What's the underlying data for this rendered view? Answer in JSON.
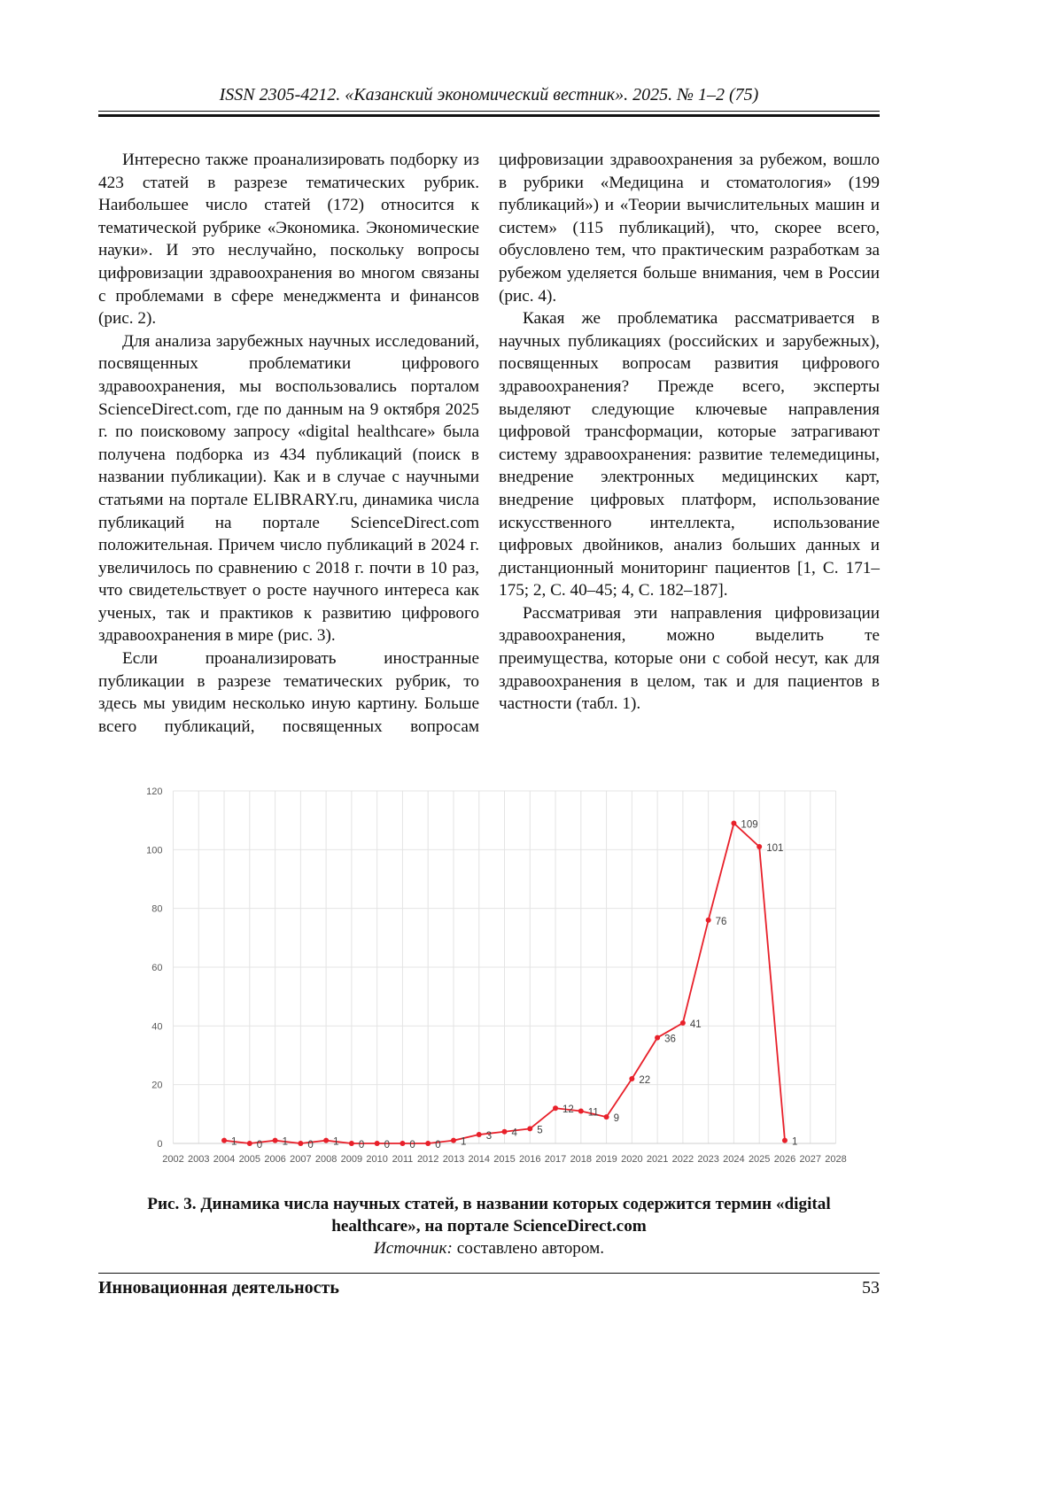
{
  "header": "ISSN 2305-4212. «Казанский экономический вестник». 2025. № 1–2 (75)",
  "left_column": [
    "Интересно также проанализировать подборку из 423 статей в разрезе тематических рубрик. Наибольшее число статей (172) относится к тематической рубрике «Экономика. Экономические науки». И это неслучайно, поскольку вопросы цифровизации здравоохранения во многом связаны с проблемами в сфере менеджмента и финансов (рис. 2).",
    "Для анализа зарубежных научных исследований, посвященных проблематики цифрового здравоохранения, мы воспользовались порталом ScienceDirect.com, где по данным на 9 октября 2025 г. по поисковому запросу «digital healthcare» была получена подборка из 434 публикаций (поиск в названии публикации). Как и в случае с научными статьями на портале ELIBRARY.ru, динамика числа публикаций на портале ScienceDirect.com положительная. Причем число публикаций в 2024 г. увеличилось по сравнению с 2018 г. почти в 10 раз, что свидетельствует о росте научного интереса как ученых, так и практиков к развитию цифрового здравоохранения в мире (рис. 3).",
    "Если проанализировать иностранные публикации в разрезе тематических рубрик, то здесь мы увидим несколько иную картину. Больше всего публикаций, посвященных вопросам"
  ],
  "right_column": [
    "цифровизации здравоохранения за рубежом, вошло в рубрики «Медицина и стоматология» (199 публикаций») и «Теории вычислительных машин и систем» (115 публикаций), что, скорее всего, обусловлено тем, что практическим разработкам за рубежом уделяется больше внимания, чем в России (рис. 4).",
    "Какая же проблематика рассматривается в научных публикациях (российских и зарубежных), посвященных вопросам развития цифрового здравоохранения? Прежде всего, эксперты выделяют следующие ключевые направления цифровой трансформации, которые затрагивают систему здравоохранения: развитие телемедицины, внедрение электронных медицинских карт, внедрение цифровых платформ, использование искусственного интеллекта, использование цифровых двойников, анализ больших данных и дистанционный мониторинг пациентов [1, С. 171–175; 2, С. 40–45; 4, С. 182–187].",
    "Рассматривая эти направления цифровизации здравоохранения, можно выделить те преимущества, которые они с собой несут, как для здравоохранения в целом, так и для пациентов в частности (табл. 1)."
  ],
  "chart_data": {
    "type": "line",
    "title": "",
    "xlabel": "",
    "ylabel": "",
    "categories": [
      "2002",
      "2003",
      "2004",
      "2005",
      "2006",
      "2007",
      "2008",
      "2009",
      "2010",
      "2011",
      "2012",
      "2013",
      "2014",
      "2015",
      "2016",
      "2017",
      "2018",
      "2019",
      "2020",
      "2021",
      "2022",
      "2023",
      "2024",
      "2025",
      "2026",
      "2027",
      "2028"
    ],
    "values": [
      null,
      null,
      1,
      0,
      1,
      0,
      1,
      0,
      0,
      0,
      0,
      1,
      3,
      4,
      5,
      12,
      11,
      9,
      22,
      36,
      41,
      76,
      109,
      101,
      1,
      null,
      null
    ],
    "yticks": [
      "0",
      "20",
      "40",
      "60",
      "80",
      "100",
      "120"
    ],
    "ylim": [
      0,
      120
    ],
    "grid": true,
    "data_labels": true,
    "line_color": "#e8202a"
  },
  "caption": {
    "title": "Рис. 3. Динамика числа научных статей, в названии которых содержится термин «digital healthcare», на портале ScienceDirect.com",
    "source_label": "Источник:",
    "source_text": " составлено автором."
  },
  "footer": {
    "section": "Инновационная деятельность",
    "page": "53"
  }
}
